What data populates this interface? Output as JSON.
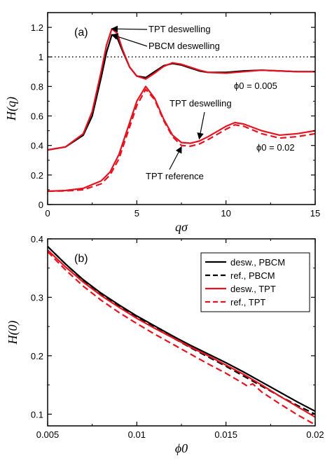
{
  "chart_data": [
    {
      "type": "line",
      "panel_label": "(a)",
      "xlabel": "qσ",
      "ylabel": "H(q)",
      "xlim": [
        0,
        15
      ],
      "ylim": [
        0,
        1.3
      ],
      "xticks": [
        0,
        5,
        10,
        15
      ],
      "yticks": [
        0,
        0.2,
        0.4,
        0.6,
        0.8,
        1,
        1.2
      ],
      "ytick_labels": [
        "0",
        "0.2",
        "0.4",
        "0.6",
        "0.8",
        "1",
        "1.2"
      ],
      "reference_line": {
        "y": 1,
        "style": "dotted"
      },
      "annotations": [
        {
          "text": "TPT deswelling",
          "at_x": 3.6,
          "at_y": 1.19
        },
        {
          "text": "PBCM deswelling",
          "at_x": 3.6,
          "at_y": 1.15
        },
        {
          "text": "TPT deswelling",
          "at_x": 8.5,
          "at_y": 0.445
        },
        {
          "text": "TPT reference",
          "at_x": 7.5,
          "at_y": 0.39
        }
      ],
      "state_labels": [
        {
          "text": "ϕ0 = 0.005"
        },
        {
          "text": "ϕ0 = 0.02"
        }
      ],
      "series": [
        {
          "color": "#000000",
          "dash": "solid",
          "x": [
            0,
            1,
            2,
            2.5,
            3,
            3.3,
            3.6,
            3.9,
            4.2,
            4.6,
            5,
            5.5,
            6,
            6.5,
            7,
            7.5,
            8,
            8.5,
            9,
            10,
            11,
            12,
            13,
            14,
            15
          ],
          "y": [
            0.37,
            0.39,
            0.47,
            0.6,
            0.86,
            1.03,
            1.15,
            1.13,
            1.04,
            0.93,
            0.87,
            0.86,
            0.9,
            0.94,
            0.955,
            0.945,
            0.925,
            0.905,
            0.895,
            0.895,
            0.905,
            0.91,
            0.905,
            0.9,
            0.9
          ]
        },
        {
          "color": "#e5131f",
          "dash": "solid",
          "x": [
            0,
            1,
            2,
            2.5,
            3,
            3.3,
            3.6,
            3.9,
            4.2,
            4.6,
            5,
            5.5,
            6,
            6.5,
            7,
            7.5,
            8,
            8.5,
            9,
            10,
            11,
            12,
            13,
            14,
            15
          ],
          "y": [
            0.37,
            0.39,
            0.48,
            0.63,
            0.9,
            1.08,
            1.19,
            1.16,
            1.05,
            0.93,
            0.87,
            0.85,
            0.89,
            0.935,
            0.96,
            0.95,
            0.93,
            0.91,
            0.895,
            0.89,
            0.9,
            0.91,
            0.905,
            0.9,
            0.9
          ]
        },
        {
          "color": "#e5131f",
          "dash": "solid",
          "x": [
            0,
            1,
            2,
            3,
            3.5,
            4,
            4.5,
            5,
            5.5,
            6,
            6.5,
            7,
            7.5,
            8,
            8.5,
            9,
            10,
            10.5,
            11,
            12,
            13,
            14,
            15
          ],
          "y": [
            0.09,
            0.095,
            0.11,
            0.16,
            0.22,
            0.34,
            0.52,
            0.7,
            0.8,
            0.72,
            0.58,
            0.47,
            0.42,
            0.415,
            0.43,
            0.46,
            0.53,
            0.555,
            0.545,
            0.5,
            0.47,
            0.48,
            0.5
          ]
        },
        {
          "color": "#e5131f",
          "dash": "dashed",
          "x": [
            0,
            1,
            2,
            3,
            3.5,
            4,
            4.5,
            5,
            5.5,
            6,
            6.5,
            7,
            7.5,
            8,
            8.5,
            9,
            10,
            10.5,
            11,
            12,
            13,
            14,
            15
          ],
          "y": [
            0.09,
            0.092,
            0.1,
            0.14,
            0.2,
            0.31,
            0.49,
            0.67,
            0.78,
            0.71,
            0.57,
            0.46,
            0.4,
            0.395,
            0.41,
            0.44,
            0.51,
            0.54,
            0.53,
            0.48,
            0.45,
            0.46,
            0.48
          ]
        }
      ]
    },
    {
      "type": "line",
      "panel_label": "(b)",
      "xlabel": "ϕ0",
      "ylabel": "H(0)",
      "xlim": [
        0.005,
        0.02
      ],
      "ylim": [
        0.08,
        0.4
      ],
      "xticks": [
        0.005,
        0.01,
        0.015,
        0.02
      ],
      "xtick_labels": [
        "0.005",
        "0.01",
        "0.015",
        "0.02"
      ],
      "yticks": [
        0.1,
        0.2,
        0.3,
        0.4
      ],
      "ytick_labels": [
        "0.1",
        "0.2",
        "0.3",
        "0.4"
      ],
      "legend_position": "top-right",
      "series": [
        {
          "name": "desw., PBCM",
          "color": "#000000",
          "dash": "solid",
          "x": [
            0.005,
            0.006,
            0.007,
            0.008,
            0.009,
            0.01,
            0.011,
            0.012,
            0.013,
            0.014,
            0.015,
            0.016,
            0.017,
            0.018,
            0.019,
            0.02
          ],
          "y": [
            0.387,
            0.357,
            0.33,
            0.307,
            0.287,
            0.268,
            0.251,
            0.234,
            0.218,
            0.203,
            0.188,
            0.172,
            0.155,
            0.138,
            0.121,
            0.105
          ]
        },
        {
          "name": "ref., PBCM",
          "color": "#000000",
          "dash": "dashed",
          "x": [
            0.005,
            0.006,
            0.007,
            0.008,
            0.009,
            0.01,
            0.011,
            0.012,
            0.013,
            0.014,
            0.015,
            0.016,
            0.017,
            0.018,
            0.019,
            0.02
          ],
          "y": [
            0.387,
            0.357,
            0.329,
            0.305,
            0.285,
            0.266,
            0.248,
            0.231,
            0.214,
            0.198,
            0.182,
            0.165,
            0.148,
            0.131,
            0.115,
            0.1
          ]
        },
        {
          "name": "desw., TPT",
          "color": "#e5131f",
          "dash": "solid",
          "x": [
            0.005,
            0.006,
            0.007,
            0.008,
            0.009,
            0.01,
            0.011,
            0.012,
            0.013,
            0.014,
            0.015,
            0.016,
            0.017,
            0.018,
            0.019,
            0.02
          ],
          "y": [
            0.381,
            0.352,
            0.326,
            0.303,
            0.283,
            0.264,
            0.247,
            0.231,
            0.215,
            0.2,
            0.184,
            0.168,
            0.15,
            0.131,
            0.113,
            0.095
          ]
        },
        {
          "name": "ref., TPT",
          "color": "#e5131f",
          "dash": "dashed",
          "x": [
            0.005,
            0.006,
            0.007,
            0.008,
            0.009,
            0.01,
            0.011,
            0.012,
            0.013,
            0.014,
            0.015,
            0.016,
            0.0162,
            0.0165,
            0.017,
            0.018,
            0.019,
            0.02
          ],
          "y": [
            0.378,
            0.347,
            0.319,
            0.295,
            0.274,
            0.255,
            0.237,
            0.22,
            0.203,
            0.186,
            0.17,
            0.152,
            0.148,
            0.152,
            0.138,
            0.118,
            0.099,
            0.082
          ]
        }
      ]
    }
  ]
}
